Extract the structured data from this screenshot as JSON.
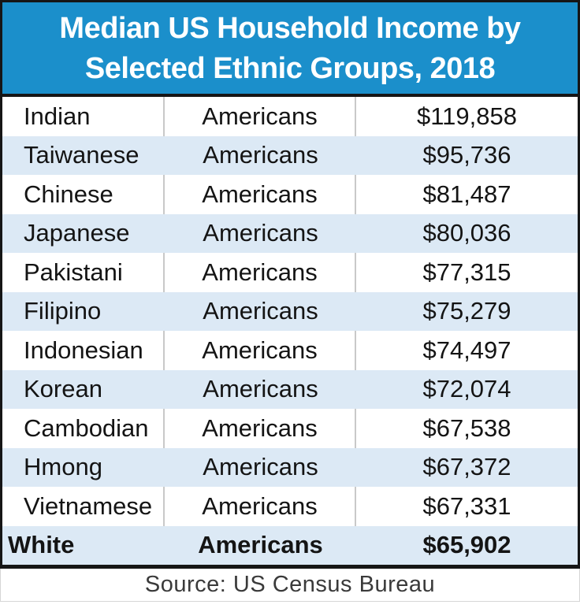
{
  "title": {
    "line1": "Median US Household Income by",
    "line2": "Selected Ethnic Groups, 2018"
  },
  "source_text": "Source: US Census Bureau",
  "colors": {
    "header_bg": "#1B8FCB",
    "band_bg": "#DCE9F5",
    "border_dark": "#161616",
    "divider": "#C9C9C9",
    "footer_border": "#D6D6D6",
    "title_text": "#FFFFFF",
    "body_text": "#141414",
    "source_color": "#3A3A3A"
  },
  "chart_data": {
    "type": "table",
    "title": "Median US Household Income by Selected Ethnic Groups, 2018",
    "source": "Source: US Census Bureau",
    "rows": [
      {
        "group": "Indian",
        "label": "Americans",
        "income_text": "$119,858",
        "income": 119858,
        "emphasis": false
      },
      {
        "group": "Taiwanese",
        "label": "Americans",
        "income_text": "$95,736",
        "income": 95736,
        "emphasis": false
      },
      {
        "group": "Chinese",
        "label": "Americans",
        "income_text": "$81,487",
        "income": 81487,
        "emphasis": false
      },
      {
        "group": "Japanese",
        "label": "Americans",
        "income_text": "$80,036",
        "income": 80036,
        "emphasis": false
      },
      {
        "group": "Pakistani",
        "label": "Americans",
        "income_text": "$77,315",
        "income": 77315,
        "emphasis": false
      },
      {
        "group": "Filipino",
        "label": "Americans",
        "income_text": "$75,279",
        "income": 75279,
        "emphasis": false
      },
      {
        "group": "Indonesian",
        "label": "Americans",
        "income_text": "$74,497",
        "income": 74497,
        "emphasis": false
      },
      {
        "group": "Korean",
        "label": "Americans",
        "income_text": "$72,074",
        "income": 72074,
        "emphasis": false
      },
      {
        "group": "Cambodian",
        "label": "Americans",
        "income_text": "$67,538",
        "income": 67538,
        "emphasis": false
      },
      {
        "group": "Hmong",
        "label": "Americans",
        "income_text": "$67,372",
        "income": 67372,
        "emphasis": false
      },
      {
        "group": "Vietnamese",
        "label": "Americans",
        "income_text": "$67,331",
        "income": 67331,
        "emphasis": false
      },
      {
        "group": "White",
        "label": "Americans",
        "income_text": "$65,902",
        "income": 65902,
        "emphasis": true
      }
    ]
  }
}
